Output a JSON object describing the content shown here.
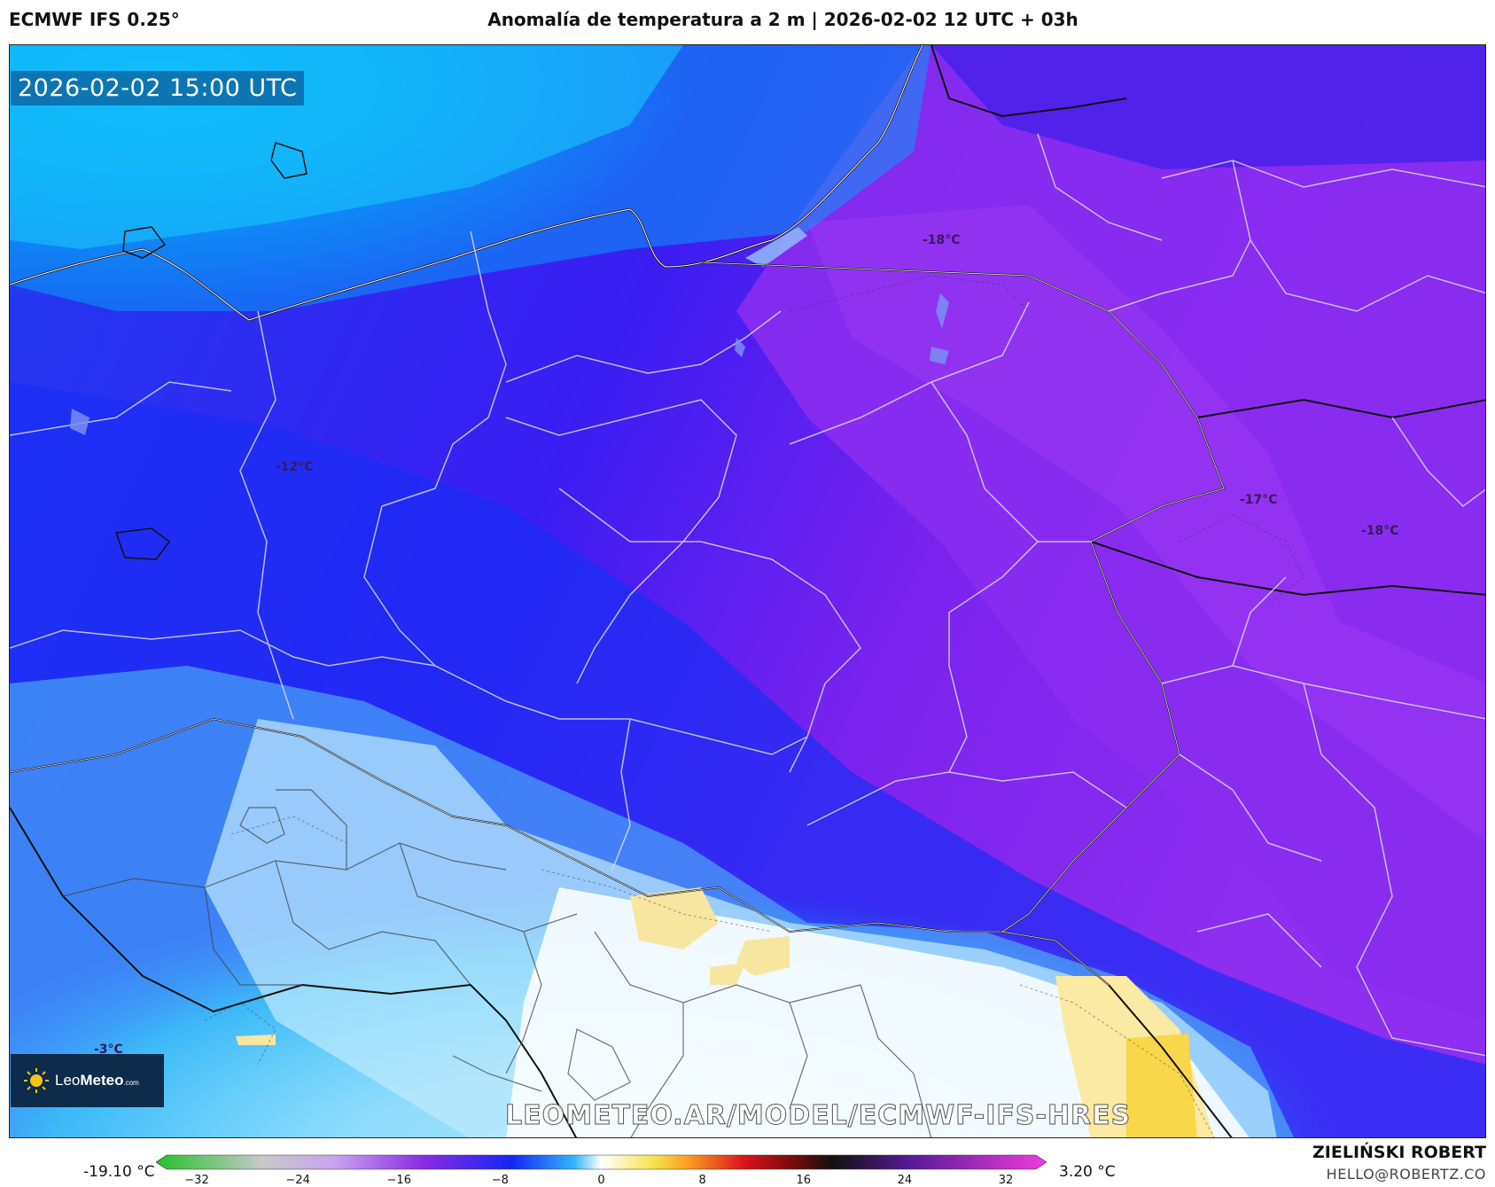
{
  "header": {
    "model": "ECMWF IFS 0.25°",
    "title": "Anomalía de temperatura a 2 m | 2026-02-02 12 UTC + 03h"
  },
  "map": {
    "timestamp": "2026-02-02 15:00 UTC",
    "watermark": "LEOMETEO.AR/MODEL/ECMWF-IFS-HRES",
    "labels": [
      "-18°C",
      "-12°C",
      "-17°C",
      "-18°C",
      "-3°C"
    ]
  },
  "brand": {
    "name_light": "Leo",
    "name_bold": "Meteo",
    "suffix": ".com"
  },
  "legend": {
    "min": "-19.10 °C",
    "max": "3.20 °C",
    "ticks": [
      "−32",
      "−24",
      "−16",
      "−8",
      "0",
      "8",
      "16",
      "24",
      "32"
    ],
    "range": [
      -32,
      32
    ],
    "colors": {
      "green": "#22c22a",
      "grey": "#c8c8c8",
      "lavender": "#c9a3f0",
      "violet": "#8a2be2",
      "blue": "#1426f5",
      "sky": "#33b6f7",
      "white": "#ffffff",
      "yellow": "#f7e14a",
      "orange": "#f79a1e",
      "red": "#d9141a",
      "darkred": "#6e0a0a",
      "black": "#111111",
      "purple": "#5a1a9a",
      "magenta": "#f03cdc"
    }
  },
  "footer": {
    "author": "ZIELIŃSKI ROBERT",
    "email": "HELLO@ROBERTZ.CO"
  }
}
